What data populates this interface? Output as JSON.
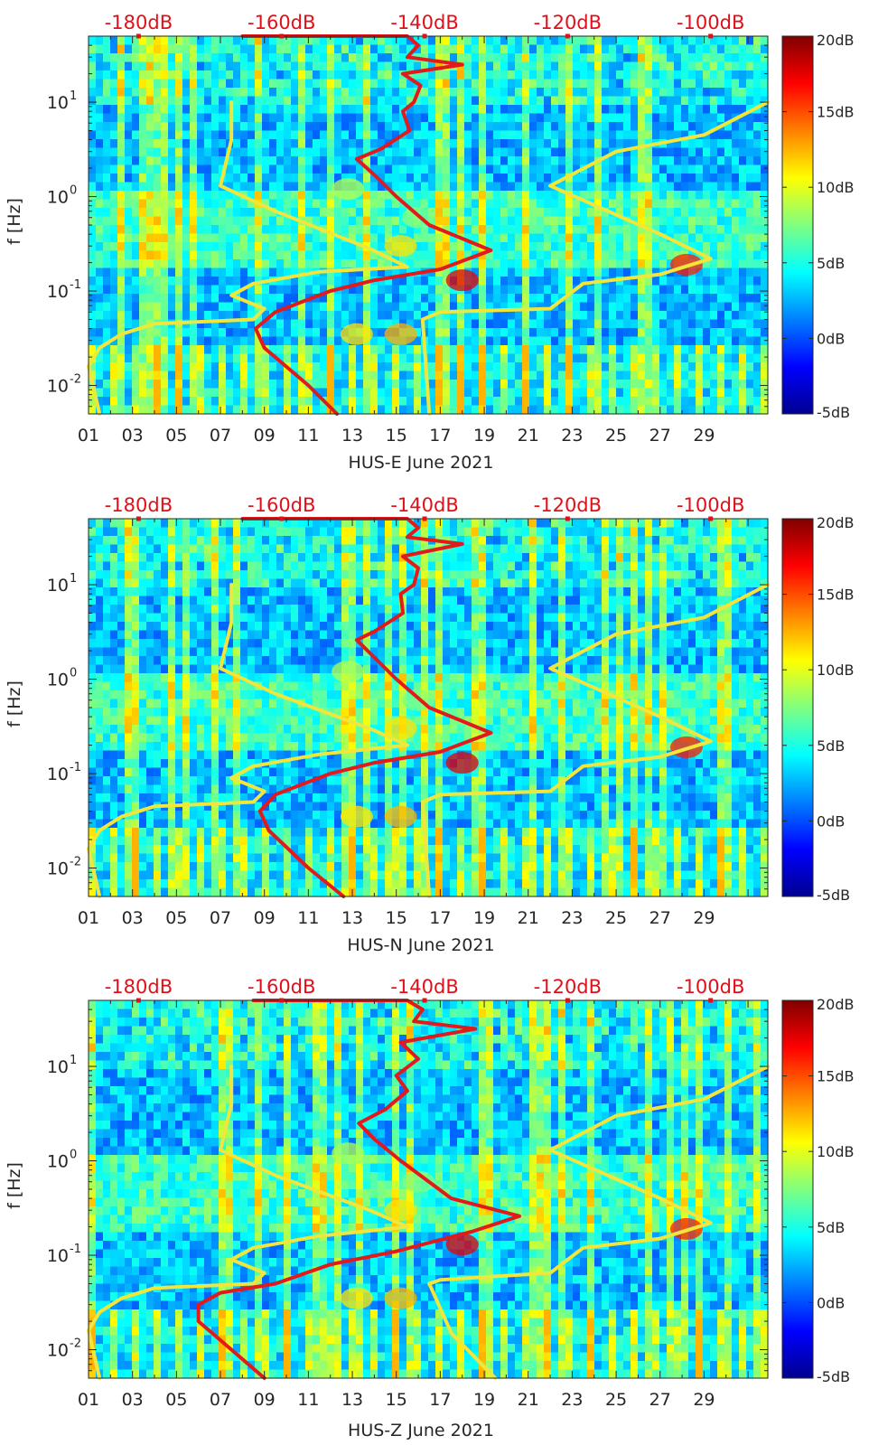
{
  "chart_data": [
    {
      "type": "heatmap",
      "title": "",
      "xlabel": "HUS-E June 2021",
      "ylabel": "f [Hz]",
      "x_ticks": [
        "01",
        "03",
        "05",
        "07",
        "09",
        "11",
        "13",
        "15",
        "17",
        "19",
        "21",
        "23",
        "25",
        "27",
        "29"
      ],
      "x_range": [
        1,
        31.9
      ],
      "y_scale": "log",
      "y_range": [
        0.005,
        50
      ],
      "y_ticks": [
        {
          "value": 10,
          "base": "10",
          "exp": "1"
        },
        {
          "value": 1,
          "base": "10",
          "exp": "0"
        },
        {
          "value": 0.1,
          "base": "10",
          "exp": "-1"
        },
        {
          "value": 0.01,
          "base": "10",
          "exp": "-2"
        }
      ],
      "top_axis": {
        "ticks": [
          "-180dB",
          "-160dB",
          "-140dB",
          "-120dB",
          "-100dB"
        ],
        "range_db": [
          -187,
          -92
        ]
      },
      "colorbar": {
        "colormap": "jet",
        "min": -5,
        "max": 20,
        "ticks": [
          "20dB",
          "15dB",
          "10dB",
          "5dB",
          "0dB",
          "-5dB"
        ]
      },
      "series": [
        {
          "color": "#f0e63c",
          "points": [
            [
              7.5,
              10
            ],
            [
              7.5,
              4
            ],
            [
              7.0,
              1.3
            ],
            [
              9.5,
              0.7
            ],
            [
              13.8,
              0.28
            ],
            [
              15.5,
              0.18
            ],
            [
              11.5,
              0.16
            ],
            [
              8.5,
              0.12
            ],
            [
              7.5,
              0.09
            ],
            [
              9.0,
              0.065
            ],
            [
              8.5,
              0.05
            ],
            [
              4.0,
              0.045
            ],
            [
              2.5,
              0.035
            ],
            [
              1.5,
              0.025
            ],
            [
              1.0,
              0.016
            ],
            [
              1.5,
              0.005
            ]
          ]
        },
        {
          "color": "#f0e63c",
          "points": [
            [
              16.5,
              0.005
            ],
            [
              16.2,
              0.05
            ],
            [
              17.0,
              0.06
            ],
            [
              22.0,
              0.065
            ],
            [
              23.5,
              0.12
            ],
            [
              27.0,
              0.15
            ],
            [
              29.3,
              0.22
            ],
            [
              27.0,
              0.4
            ],
            [
              22.0,
              1.3
            ],
            [
              25.0,
              3.0
            ],
            [
              29.0,
              4.5
            ],
            [
              31.9,
              10
            ]
          ]
        },
        {
          "color": "#e31a1c",
          "points": [
            [
              12.3,
              0.005
            ],
            [
              11.0,
              0.01
            ],
            [
              9.0,
              0.025
            ],
            [
              8.6,
              0.04
            ],
            [
              9.5,
              0.06
            ],
            [
              12.0,
              0.1
            ],
            [
              14.0,
              0.13
            ],
            [
              17.0,
              0.17
            ],
            [
              19.3,
              0.27
            ],
            [
              16.5,
              0.5
            ],
            [
              15.0,
              1.0
            ],
            [
              14.0,
              1.7
            ],
            [
              13.2,
              2.5
            ],
            [
              14.3,
              3.2
            ],
            [
              15.6,
              5.0
            ],
            [
              15.3,
              8.0
            ],
            [
              15.8,
              10
            ],
            [
              16.1,
              15
            ],
            [
              15.3,
              20
            ],
            [
              18.0,
              25
            ],
            [
              15.5,
              30
            ],
            [
              16.0,
              40
            ],
            [
              15.5,
              50
            ],
            [
              8.0,
              50
            ]
          ]
        }
      ]
    },
    {
      "type": "heatmap",
      "title": "",
      "xlabel": "HUS-N June 2021",
      "ylabel": "f [Hz]",
      "x_ticks": [
        "01",
        "03",
        "05",
        "07",
        "09",
        "11",
        "13",
        "15",
        "17",
        "19",
        "21",
        "23",
        "25",
        "27",
        "29"
      ],
      "x_range": [
        1,
        31.9
      ],
      "y_scale": "log",
      "y_range": [
        0.005,
        50
      ],
      "y_ticks": [
        {
          "value": 10,
          "base": "10",
          "exp": "1"
        },
        {
          "value": 1,
          "base": "10",
          "exp": "0"
        },
        {
          "value": 0.1,
          "base": "10",
          "exp": "-1"
        },
        {
          "value": 0.01,
          "base": "10",
          "exp": "-2"
        }
      ],
      "top_axis": {
        "ticks": [
          "-180dB",
          "-160dB",
          "-140dB",
          "-120dB",
          "-100dB"
        ],
        "range_db": [
          -187,
          -92
        ]
      },
      "colorbar": {
        "colormap": "jet",
        "min": -5,
        "max": 20,
        "ticks": [
          "20dB",
          "15dB",
          "10dB",
          "5dB",
          "0dB",
          "-5dB"
        ]
      },
      "series": [
        {
          "color": "#f0e63c",
          "points": [
            [
              7.5,
              10
            ],
            [
              7.5,
              4
            ],
            [
              7.0,
              1.3
            ],
            [
              9.5,
              0.7
            ],
            [
              13.8,
              0.3
            ],
            [
              15.5,
              0.2
            ],
            [
              11.5,
              0.16
            ],
            [
              8.5,
              0.12
            ],
            [
              7.5,
              0.09
            ],
            [
              9.0,
              0.065
            ],
            [
              8.5,
              0.05
            ],
            [
              4.0,
              0.045
            ],
            [
              2.5,
              0.035
            ],
            [
              1.5,
              0.025
            ],
            [
              1.0,
              0.016
            ],
            [
              1.5,
              0.005
            ]
          ]
        },
        {
          "color": "#f0e63c",
          "points": [
            [
              16.5,
              0.005
            ],
            [
              16.2,
              0.05
            ],
            [
              17.0,
              0.06
            ],
            [
              22.0,
              0.065
            ],
            [
              23.5,
              0.12
            ],
            [
              27.0,
              0.15
            ],
            [
              29.3,
              0.22
            ],
            [
              27.0,
              0.4
            ],
            [
              22.0,
              1.3
            ],
            [
              25.0,
              3.0
            ],
            [
              29.0,
              4.5
            ],
            [
              31.9,
              10
            ]
          ]
        },
        {
          "color": "#e31a1c",
          "points": [
            [
              12.6,
              0.005
            ],
            [
              11.0,
              0.01
            ],
            [
              9.2,
              0.025
            ],
            [
              8.8,
              0.04
            ],
            [
              9.5,
              0.06
            ],
            [
              12.0,
              0.1
            ],
            [
              14.0,
              0.13
            ],
            [
              17.0,
              0.17
            ],
            [
              19.3,
              0.27
            ],
            [
              16.5,
              0.5
            ],
            [
              15.0,
              1.0
            ],
            [
              14.0,
              1.7
            ],
            [
              13.2,
              2.6
            ],
            [
              14.0,
              3.2
            ],
            [
              15.3,
              5.0
            ],
            [
              15.2,
              8.0
            ],
            [
              15.8,
              10
            ],
            [
              16.0,
              15
            ],
            [
              15.3,
              20
            ],
            [
              18.0,
              27
            ],
            [
              15.5,
              32
            ],
            [
              16.0,
              40
            ],
            [
              15.5,
              50
            ],
            [
              8.0,
              50
            ]
          ]
        }
      ]
    },
    {
      "type": "heatmap",
      "title": "",
      "xlabel": "HUS-Z June 2021",
      "ylabel": "f [Hz]",
      "x_ticks": [
        "01",
        "03",
        "05",
        "07",
        "09",
        "11",
        "13",
        "15",
        "17",
        "19",
        "21",
        "23",
        "25",
        "27",
        "29"
      ],
      "x_range": [
        1,
        31.9
      ],
      "y_scale": "log",
      "y_range": [
        0.005,
        50
      ],
      "y_ticks": [
        {
          "value": 10,
          "base": "10",
          "exp": "1"
        },
        {
          "value": 1,
          "base": "10",
          "exp": "0"
        },
        {
          "value": 0.1,
          "base": "10",
          "exp": "-1"
        },
        {
          "value": 0.01,
          "base": "10",
          "exp": "-2"
        }
      ],
      "top_axis": {
        "ticks": [
          "-180dB",
          "-160dB",
          "-140dB",
          "-120dB",
          "-100dB"
        ],
        "range_db": [
          -187,
          -92
        ]
      },
      "colorbar": {
        "colormap": "jet",
        "min": -5,
        "max": 20,
        "ticks": [
          "20dB",
          "15dB",
          "10dB",
          "5dB",
          "0dB",
          "-5dB"
        ]
      },
      "series": [
        {
          "color": "#f0e63c",
          "points": [
            [
              7.5,
              10
            ],
            [
              7.5,
              4
            ],
            [
              7.0,
              1.3
            ],
            [
              9.5,
              0.7
            ],
            [
              13.8,
              0.3
            ],
            [
              15.5,
              0.2
            ],
            [
              11.5,
              0.16
            ],
            [
              8.5,
              0.12
            ],
            [
              7.5,
              0.09
            ],
            [
              9.0,
              0.065
            ],
            [
              8.5,
              0.05
            ],
            [
              4.0,
              0.045
            ],
            [
              2.5,
              0.035
            ],
            [
              1.5,
              0.025
            ],
            [
              1.0,
              0.016
            ],
            [
              1.5,
              0.005
            ]
          ]
        },
        {
          "color": "#f0e63c",
          "points": [
            [
              19.5,
              0.005
            ],
            [
              17.5,
              0.015
            ],
            [
              16.5,
              0.05
            ],
            [
              17.0,
              0.055
            ],
            [
              22.0,
              0.065
            ],
            [
              23.5,
              0.12
            ],
            [
              27.0,
              0.15
            ],
            [
              29.3,
              0.22
            ],
            [
              27.0,
              0.4
            ],
            [
              22.0,
              1.3
            ],
            [
              25.0,
              3.0
            ],
            [
              29.0,
              4.5
            ],
            [
              31.9,
              10
            ]
          ]
        },
        {
          "color": "#e31a1c",
          "points": [
            [
              9.0,
              0.005
            ],
            [
              7.5,
              0.01
            ],
            [
              6.0,
              0.02
            ],
            [
              6.0,
              0.03
            ],
            [
              7.0,
              0.04
            ],
            [
              9.5,
              0.05
            ],
            [
              12.0,
              0.08
            ],
            [
              15.0,
              0.11
            ],
            [
              18.5,
              0.18
            ],
            [
              20.6,
              0.26
            ],
            [
              17.5,
              0.4
            ],
            [
              15.2,
              1.0
            ],
            [
              14.0,
              1.7
            ],
            [
              13.3,
              2.5
            ],
            [
              14.5,
              3.5
            ],
            [
              15.5,
              5.5
            ],
            [
              15.0,
              8.0
            ],
            [
              16.0,
              12
            ],
            [
              15.2,
              18
            ],
            [
              18.6,
              25
            ],
            [
              15.8,
              30
            ],
            [
              16.2,
              40
            ],
            [
              15.5,
              50
            ],
            [
              8.5,
              50
            ]
          ]
        }
      ]
    }
  ]
}
